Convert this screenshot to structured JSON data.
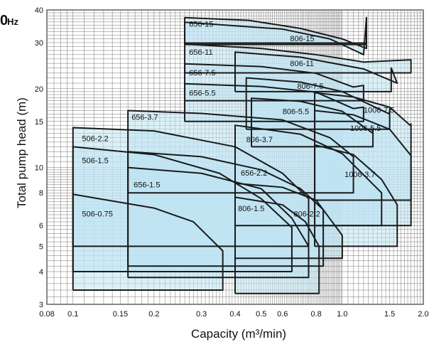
{
  "corner_label": {
    "main": "0",
    "unit": "Hz"
  },
  "chart_data": {
    "type": "area",
    "title": "",
    "xlabel": "Capacity (m³/min)",
    "ylabel": "Total pump head (m)",
    "x_scale": "log",
    "y_scale": "log",
    "xlim": [
      0.08,
      2.0
    ],
    "ylim": [
      3,
      40
    ],
    "grid": true,
    "x_ticks": [
      {
        "value": 0.08,
        "label": "0.08"
      },
      {
        "value": 0.1,
        "label": "0.1"
      },
      {
        "value": 0.15,
        "label": "0.15"
      },
      {
        "value": 0.2,
        "label": "0.2"
      },
      {
        "value": 0.3,
        "label": "0.3"
      },
      {
        "value": 0.4,
        "label": "0.4"
      },
      {
        "value": 0.5,
        "label": "0.5"
      },
      {
        "value": 0.6,
        "label": "0.6"
      },
      {
        "value": 0.8,
        "label": "0.8"
      },
      {
        "value": 1.0,
        "label": "1.0"
      },
      {
        "value": 1.5,
        "label": "1.5"
      },
      {
        "value": 2.0,
        "label": "2.0"
      }
    ],
    "y_ticks": [
      {
        "value": 3,
        "label": "3"
      },
      {
        "value": 4,
        "label": "4"
      },
      {
        "value": 5,
        "label": "5"
      },
      {
        "value": 6,
        "label": "6"
      },
      {
        "value": 8,
        "label": "8"
      },
      {
        "value": 10,
        "label": "10"
      },
      {
        "value": 15,
        "label": "15"
      },
      {
        "value": 20,
        "label": "20"
      },
      {
        "value": 30,
        "label": "30"
      },
      {
        "value": 40,
        "label": "40"
      }
    ],
    "fill_color": "#bfe3f3",
    "edge_color": "#1a1a1a",
    "series": [
      {
        "name": "806-15",
        "curve": [
          [
            0.26,
            35.9
          ],
          [
            0.6,
            33.8
          ],
          [
            0.9,
            31.0
          ],
          [
            1.2,
            27.0
          ]
        ],
        "top_right_y": 37.4,
        "bottom": 29.9,
        "x_max": 1.23,
        "label_at": [
          0.64,
          30.4
        ]
      },
      {
        "name": "656-15",
        "curve": [
          [
            0.26,
            37.4
          ],
          [
            0.45,
            36.5
          ],
          [
            0.7,
            34.0
          ],
          [
            1.0,
            31.0
          ],
          [
            1.23,
            28.5
          ]
        ],
        "top_right_y": 37.4,
        "bottom": 29.5,
        "x_max": 1.23,
        "label_at": [
          0.27,
          34.5
        ]
      },
      {
        "name": "806-11",
        "curve": [
          [
            0.4,
            27.6
          ],
          [
            0.7,
            26.4
          ],
          [
            1.2,
            23.8
          ],
          [
            1.6,
            21.0
          ]
        ],
        "top_right_y": 24.0,
        "bottom": 19.5,
        "x_max": 1.52,
        "label_at": [
          0.64,
          24.4
        ]
      },
      {
        "name": "656-11",
        "curve": [
          [
            0.26,
            29.6
          ],
          [
            0.5,
            28.5
          ],
          [
            0.8,
            27.0
          ],
          [
            1.2,
            25.3
          ]
        ],
        "top_right_y": 25.8,
        "bottom": 23.0,
        "x_max": 1.8,
        "label_at": [
          0.27,
          27.0
        ]
      },
      {
        "name": "656-7.5",
        "curve": [
          [
            0.26,
            24.9
          ],
          [
            0.5,
            24.3
          ],
          [
            0.8,
            22.9
          ],
          [
            1.1,
            20.3
          ]
        ],
        "top_right_y": 20.6,
        "bottom": 18.0,
        "x_max": 1.2,
        "label_at": [
          0.27,
          22.5
        ]
      },
      {
        "name": "806-7.5",
        "curve": [
          [
            0.44,
            22.0
          ],
          [
            0.7,
            21.2
          ],
          [
            1.0,
            19.5
          ],
          [
            1.5,
            16.0
          ]
        ],
        "top_right_y": 17.0,
        "bottom": 14.0,
        "x_max": 1.5,
        "label_at": [
          0.68,
          20.0
        ]
      },
      {
        "name": "1006-7.5",
        "curve": [
          [
            0.79,
            19.3
          ],
          [
            1.1,
            18.6
          ],
          [
            1.5,
            17.0
          ],
          [
            1.8,
            14.4
          ]
        ],
        "top_right_y": 14.7,
        "bottom": 7.5,
        "x_max": 1.8,
        "label_at": [
          1.2,
          16.2
        ]
      },
      {
        "name": "656-5.5",
        "curve": [
          [
            0.26,
            20.9
          ],
          [
            0.5,
            20.4
          ],
          [
            0.8,
            19.4
          ],
          [
            1.1,
            16.8
          ]
        ],
        "top_right_y": 17.0,
        "bottom": 15.0,
        "x_max": 1.2,
        "label_at": [
          0.27,
          18.8
        ]
      },
      {
        "name": "806-5.5",
        "curve": [
          [
            0.46,
            18.4
          ],
          [
            0.7,
            17.9
          ],
          [
            1.0,
            16.4
          ],
          [
            1.3,
            13.5
          ]
        ],
        "top_right_y": 14.0,
        "bottom": 12.0,
        "x_max": 1.3,
        "label_at": [
          0.6,
          16.0
        ]
      },
      {
        "name": "1006-5.5",
        "curve": [
          [
            0.79,
            16.5
          ],
          [
            1.1,
            15.9
          ],
          [
            1.5,
            14.0
          ],
          [
            1.8,
            11.1
          ]
        ],
        "top_right_y": 11.1,
        "bottom": 6.0,
        "x_max": 1.8,
        "label_at": [
          1.07,
          13.8
        ]
      },
      {
        "name": "656-3.7",
        "curve": [
          [
            0.16,
            16.5
          ],
          [
            0.3,
            16.1
          ],
          [
            0.6,
            15.2
          ],
          [
            0.9,
            13.0
          ],
          [
            1.1,
            11.0
          ]
        ],
        "top_right_y": 11.0,
        "bottom": 8.0,
        "x_max": 1.1,
        "label_at": [
          0.165,
          15.2
        ]
      },
      {
        "name": "806-3.7",
        "curve": [
          [
            0.4,
            14.5
          ],
          [
            0.7,
            13.4
          ],
          [
            1.0,
            11.3
          ],
          [
            1.4,
            8.0
          ]
        ],
        "top_right_y": 8.0,
        "bottom": 6.0,
        "x_max": 1.4,
        "label_at": [
          0.44,
          12.5
        ]
      },
      {
        "name": "1006-3.7",
        "curve": [
          [
            0.79,
            12.2
          ],
          [
            1.1,
            11.2
          ],
          [
            1.4,
            9.0
          ],
          [
            1.6,
            7.2
          ]
        ],
        "top_right_y": 7.2,
        "bottom": 5.0,
        "x_max": 1.6,
        "label_at": [
          1.02,
          9.2
        ]
      },
      {
        "name": "506-2.2",
        "curve": [
          [
            0.1,
            14.2
          ],
          [
            0.2,
            13.8
          ],
          [
            0.4,
            12.0
          ],
          [
            0.6,
            9.5
          ],
          [
            0.75,
            7.6
          ]
        ],
        "top_right_y": 7.6,
        "bottom": 5.0,
        "x_max": 0.75,
        "label_at": [
          0.108,
          12.6
        ]
      },
      {
        "name": "656-2.2",
        "curve": [
          [
            0.16,
            11.5
          ],
          [
            0.3,
            11.0
          ],
          [
            0.5,
            9.8
          ],
          [
            0.7,
            8.3
          ],
          [
            0.85,
            6.9
          ]
        ],
        "top_right_y": 6.9,
        "bottom": 4.2,
        "x_max": 0.85,
        "label_at": [
          0.42,
          9.3
        ]
      },
      {
        "name": "806-2.2",
        "curve": [
          [
            0.4,
            8.7
          ],
          [
            0.6,
            8.4
          ],
          [
            0.8,
            7.5
          ],
          [
            1.0,
            5.5
          ]
        ],
        "top_right_y": 5.5,
        "bottom": 4.5,
        "x_max": 1.0,
        "label_at": [
          0.66,
          6.5
        ]
      },
      {
        "name": "506-1.5",
        "curve": [
          [
            0.1,
            12.0
          ],
          [
            0.2,
            11.2
          ],
          [
            0.35,
            9.5
          ],
          [
            0.5,
            7.6
          ],
          [
            0.65,
            5.9
          ]
        ],
        "top_right_y": 5.9,
        "bottom": 4.0,
        "x_max": 0.65,
        "label_at": [
          0.108,
          10.4
        ]
      },
      {
        "name": "656-1.5",
        "curve": [
          [
            0.16,
            10.0
          ],
          [
            0.3,
            9.5
          ],
          [
            0.5,
            8.3
          ],
          [
            0.65,
            6.4
          ],
          [
            0.75,
            5.0
          ]
        ],
        "top_right_y": 5.0,
        "bottom": 3.8,
        "x_max": 0.75,
        "label_at": [
          0.168,
          8.4
        ]
      },
      {
        "name": "806-1.5",
        "curve": [
          [
            0.4,
            7.7
          ],
          [
            0.6,
            7.2
          ],
          [
            0.73,
            6.2
          ],
          [
            0.82,
            5.0
          ]
        ],
        "top_right_y": 5.0,
        "bottom": 3.3,
        "x_max": 0.82,
        "label_at": [
          0.41,
          6.8
        ]
      },
      {
        "name": "506-0.75",
        "curve": [
          [
            0.1,
            7.9
          ],
          [
            0.2,
            7.0
          ],
          [
            0.28,
            6.2
          ],
          [
            0.36,
            4.8
          ]
        ],
        "top_right_y": 4.8,
        "bottom": 3.4,
        "x_max": 0.36,
        "label_at": [
          0.108,
          6.5
        ]
      }
    ]
  }
}
